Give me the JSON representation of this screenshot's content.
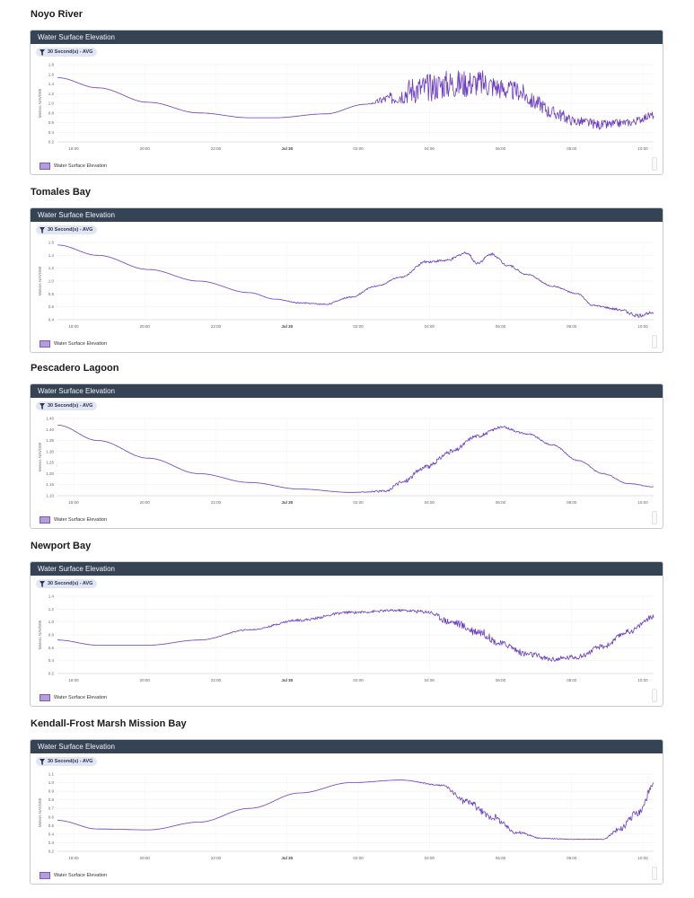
{
  "sections": [
    {
      "site": "Noyo River",
      "panel_title": "Water Surface Elevation",
      "filter": "30 Second(s) - AVG",
      "legend": "Water Surface Elevation"
    },
    {
      "site": "Tomales Bay",
      "panel_title": "Water Surface Elevation",
      "filter": "30 Second(s) - AVG",
      "legend": "Water Surface Elevation"
    },
    {
      "site": "Pescadero Lagoon",
      "panel_title": "Water Surface Elevation",
      "filter": "30 Second(s) - AVG",
      "legend": "Water Surface Elevation"
    },
    {
      "site": "Newport Bay",
      "panel_title": "Water Surface Elevation",
      "filter": "30 Second(s) - AVG",
      "legend": "Water Surface Elevation"
    },
    {
      "site": "Kendall-Frost Marsh Mission Bay",
      "panel_title": "Water Surface Elevation",
      "filter": "30 Second(s) - AVG",
      "legend": "Water Surface Elevation"
    }
  ],
  "chart_data": [
    {
      "type": "line",
      "title": "Water Surface Elevation",
      "ylabel": "Meters NAVD88",
      "x_ticks": [
        "18:00",
        "20:00",
        "22:00",
        "Jul 30",
        "02:00",
        "04:00",
        "06:00",
        "08:00",
        "10:00"
      ],
      "xlim": [
        17.7,
        29.5
      ],
      "ylim": [
        0.2,
        1.8
      ],
      "y_ticks": [
        0.2,
        0.4,
        0.6,
        0.8,
        1.0,
        1.2,
        1.4,
        1.6,
        1.8
      ],
      "y_tick_labels": [
        "0.2",
        "0.4",
        "0.6",
        "0.8",
        "1.0",
        "1.2",
        "1.4",
        "1.6",
        "1.8"
      ],
      "color": "#6a3cc4",
      "series": [
        {
          "name": "Water Surface Elevation",
          "x": [
            17.7,
            18.5,
            19.5,
            20.5,
            21.5,
            22.0,
            23.0,
            23.8,
            24.3,
            24.8,
            25.5,
            26.0,
            26.8,
            27.2,
            27.5,
            28.0,
            28.5,
            29.0,
            29.5
          ],
          "y": [
            1.53,
            1.32,
            1.02,
            0.8,
            0.7,
            0.7,
            0.78,
            0.98,
            1.1,
            1.3,
            1.4,
            1.42,
            1.25,
            1.0,
            0.8,
            0.62,
            0.55,
            0.6,
            0.75
          ],
          "noise": [
            0,
            0,
            0,
            0,
            0,
            0,
            0,
            0,
            0.12,
            0.3,
            0.3,
            0.28,
            0.2,
            0.16,
            0.14,
            0.1,
            0.1,
            0.08,
            0.08
          ]
        }
      ]
    },
    {
      "type": "line",
      "title": "Water Surface Elevation",
      "ylabel": "Meters NAVD88",
      "x_ticks": [
        "18:00",
        "20:00",
        "22:00",
        "Jul 30",
        "02:00",
        "04:00",
        "06:00",
        "08:00",
        "10:00"
      ],
      "xlim": [
        17.7,
        29.5
      ],
      "ylim": [
        0.4,
        1.6
      ],
      "y_ticks": [
        0.4,
        0.6,
        0.8,
        1.0,
        1.2,
        1.4,
        1.6
      ],
      "y_tick_labels": [
        "0.4",
        "0.6",
        "0.8",
        "1.0",
        "1.2",
        "1.4",
        "1.6"
      ],
      "color": "#6a3cc4",
      "series": [
        {
          "name": "Water Surface Elevation",
          "x": [
            17.7,
            18.5,
            19.5,
            20.5,
            21.5,
            22.0,
            22.5,
            23.0,
            23.5,
            24.0,
            24.5,
            25.0,
            25.4,
            25.8,
            26.0,
            26.3,
            26.6,
            27.0,
            27.5,
            28.0,
            28.3,
            28.8,
            29.2,
            29.5
          ],
          "y": [
            1.56,
            1.4,
            1.18,
            1.0,
            0.82,
            0.72,
            0.66,
            0.64,
            0.75,
            0.92,
            1.06,
            1.3,
            1.32,
            1.44,
            1.28,
            1.42,
            1.25,
            1.1,
            0.92,
            0.8,
            0.62,
            0.56,
            0.46,
            0.52
          ],
          "noise": [
            0,
            0,
            0,
            0,
            0,
            0,
            0.01,
            0.01,
            0.01,
            0.01,
            0.01,
            0.02,
            0.02,
            0.02,
            0.02,
            0.02,
            0.02,
            0.01,
            0.01,
            0.01,
            0.01,
            0.02,
            0.03,
            0.02
          ]
        }
      ]
    },
    {
      "type": "line",
      "title": "Water Surface Elevation",
      "ylabel": "Meters NAVD88",
      "x_ticks": [
        "18:00",
        "20:00",
        "22:00",
        "Jul 30",
        "02:00",
        "04:00",
        "06:00",
        "08:00",
        "10:00"
      ],
      "xlim": [
        17.7,
        29.5
      ],
      "ylim": [
        1.1,
        1.45
      ],
      "y_ticks": [
        1.1,
        1.15,
        1.2,
        1.25,
        1.3,
        1.35,
        1.4,
        1.45
      ],
      "y_tick_labels": [
        "1.10",
        "1.15",
        "1.20",
        "1.25",
        "1.30",
        "1.35",
        "1.40",
        "1.45"
      ],
      "color": "#6a3cc4",
      "series": [
        {
          "name": "Water Surface Elevation",
          "x": [
            17.7,
            18.5,
            19.5,
            20.5,
            21.5,
            22.5,
            23.5,
            24.2,
            24.5,
            25.0,
            25.5,
            26.0,
            26.5,
            27.0,
            27.5,
            28.0,
            28.5,
            29.0,
            29.5
          ],
          "y": [
            1.42,
            1.35,
            1.27,
            1.2,
            1.16,
            1.13,
            1.115,
            1.12,
            1.16,
            1.23,
            1.3,
            1.37,
            1.41,
            1.38,
            1.33,
            1.26,
            1.2,
            1.155,
            1.14
          ],
          "noise": [
            0,
            0,
            0,
            0,
            0,
            0,
            0,
            0.005,
            0.01,
            0.01,
            0.01,
            0.008,
            0.006,
            0.004,
            0.003,
            0.002,
            0.002,
            0.001,
            0.001
          ]
        }
      ]
    },
    {
      "type": "line",
      "title": "Water Surface Elevation",
      "ylabel": "Meters NAVD88",
      "x_ticks": [
        "18:00",
        "20:00",
        "22:00",
        "Jul 30",
        "02:00",
        "04:00",
        "06:00",
        "08:00",
        "10:00"
      ],
      "xlim": [
        17.7,
        29.5
      ],
      "ylim": [
        0.2,
        1.4
      ],
      "y_ticks": [
        0.2,
        0.4,
        0.6,
        0.8,
        1.0,
        1.2,
        1.4
      ],
      "y_tick_labels": [
        "0.2",
        "0.4",
        "0.6",
        "0.8",
        "1.0",
        "1.2",
        "1.4"
      ],
      "color": "#6a3cc4",
      "series": [
        {
          "name": "Water Surface Elevation",
          "x": [
            17.7,
            18.5,
            19.5,
            20.5,
            21.5,
            22.5,
            23.5,
            24.5,
            25.0,
            25.5,
            26.0,
            26.5,
            27.0,
            27.5,
            28.0,
            28.5,
            29.0,
            29.5
          ],
          "y": [
            0.72,
            0.64,
            0.64,
            0.72,
            0.88,
            1.03,
            1.15,
            1.18,
            1.16,
            1.0,
            0.86,
            0.66,
            0.5,
            0.42,
            0.46,
            0.62,
            0.85,
            1.08
          ],
          "noise": [
            0,
            0,
            0,
            0,
            0.01,
            0.02,
            0.02,
            0.02,
            0.03,
            0.06,
            0.07,
            0.05,
            0.05,
            0.04,
            0.04,
            0.04,
            0.04,
            0.04
          ]
        }
      ]
    },
    {
      "type": "line",
      "title": "Water Surface Elevation",
      "ylabel": "Meters NAVD88",
      "x_ticks": [
        "18:00",
        "20:00",
        "22:00",
        "Jul 30",
        "02:00",
        "04:00",
        "06:00",
        "08:00",
        "10:00"
      ],
      "xlim": [
        17.7,
        29.5
      ],
      "ylim": [
        0.2,
        1.1
      ],
      "y_ticks": [
        0.2,
        0.3,
        0.4,
        0.5,
        0.6,
        0.7,
        0.8,
        0.9,
        1.0,
        1.1
      ],
      "y_tick_labels": [
        "0.2",
        "0.3",
        "0.4",
        "0.5",
        "0.6",
        "0.7",
        "0.8",
        "0.9",
        "1.0",
        "1.1"
      ],
      "color": "#6a3cc4",
      "series": [
        {
          "name": "Water Surface Elevation",
          "x": [
            17.7,
            18.5,
            19.5,
            20.5,
            21.5,
            22.5,
            23.5,
            24.5,
            25.3,
            25.8,
            26.3,
            26.8,
            27.3,
            28.0,
            28.5,
            28.8,
            29.2,
            29.5
          ],
          "y": [
            0.56,
            0.46,
            0.45,
            0.54,
            0.7,
            0.88,
            1.0,
            1.03,
            0.97,
            0.78,
            0.6,
            0.42,
            0.35,
            0.34,
            0.34,
            0.45,
            0.65,
            0.95
          ],
          "noise": [
            0,
            0,
            0,
            0,
            0,
            0,
            0,
            0,
            0.01,
            0.04,
            0.04,
            0.02,
            0.005,
            0.003,
            0.003,
            0.03,
            0.05,
            0.06
          ]
        }
      ]
    }
  ]
}
